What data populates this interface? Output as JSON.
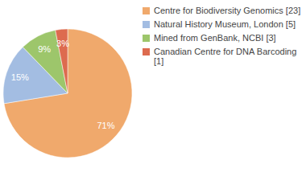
{
  "chart_data": {
    "type": "pie",
    "categories": [
      "Centre for Biodiversity Genomics [23]",
      "Natural History Museum, London [5]",
      "Mined from GenBank, NCBI [3]",
      "Canadian Centre for DNA Barcoding [1]"
    ],
    "values": [
      71,
      15,
      9,
      3
    ],
    "value_labels": [
      "71%",
      "15%",
      "9%",
      "3%"
    ],
    "colors": [
      "#f0a96c",
      "#a3bde2",
      "#9dc66b",
      "#dd6b4f"
    ],
    "data_labels": true,
    "legend": "upper right"
  }
}
